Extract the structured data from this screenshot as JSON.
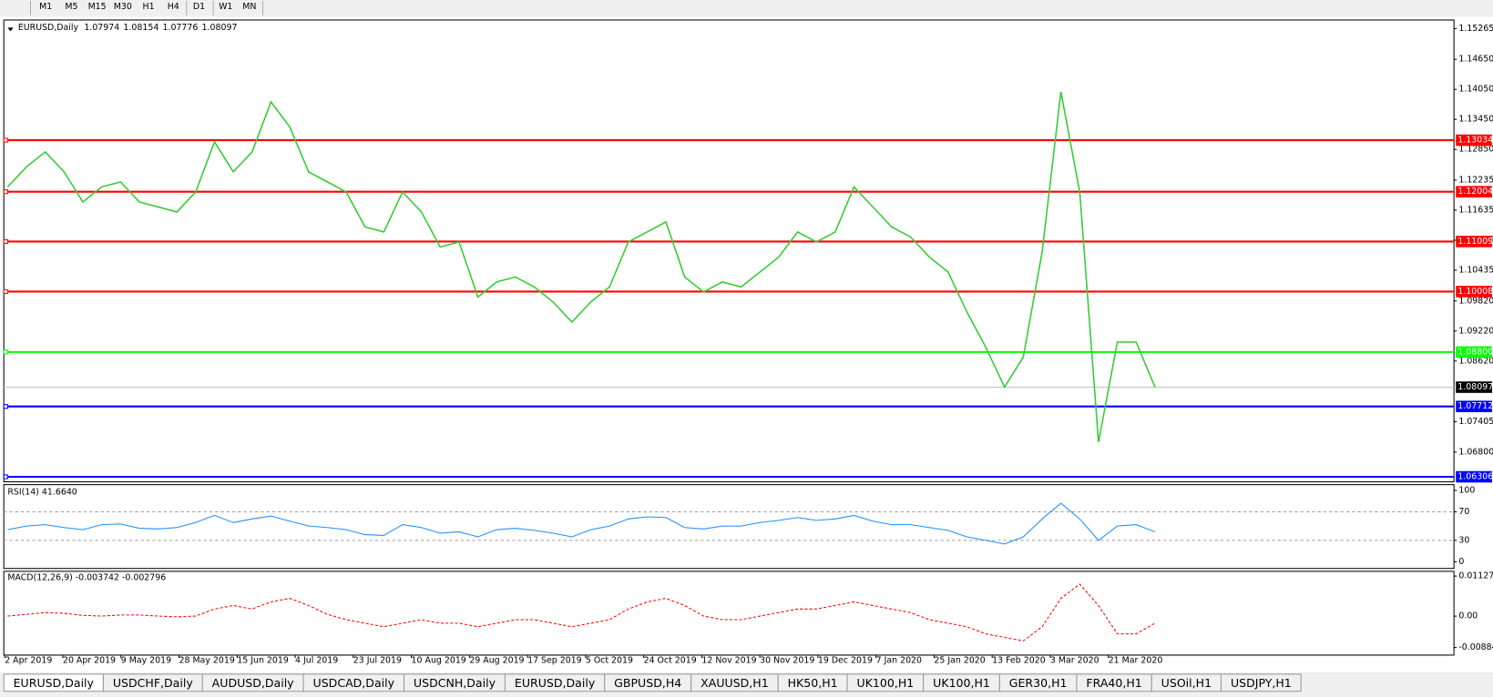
{
  "toolbar": {
    "timeframes": [
      "M1",
      "M5",
      "M15",
      "M30",
      "H1",
      "H4",
      "D1",
      "W1",
      "MN"
    ]
  },
  "chart_data": [
    {
      "type": "line",
      "title": "EURUSD,Daily",
      "ohlc": [
        1.07974,
        1.08154,
        1.07776,
        1.08097
      ],
      "color": "#33cc33",
      "values": [
        1.121,
        1.125,
        1.128,
        1.124,
        1.118,
        1.121,
        1.122,
        1.118,
        1.117,
        1.116,
        1.12,
        1.13,
        1.124,
        1.128,
        1.138,
        1.133,
        1.124,
        1.122,
        1.12,
        1.113,
        1.112,
        1.12,
        1.116,
        1.109,
        1.11,
        1.099,
        1.102,
        1.103,
        1.101,
        1.098,
        1.094,
        1.098,
        1.101,
        1.11,
        1.112,
        1.114,
        1.103,
        1.1,
        1.102,
        1.101,
        1.104,
        1.107,
        1.112,
        1.11,
        1.112,
        1.121,
        1.117,
        1.113,
        1.111,
        1.107,
        1.104,
        1.096,
        1.089,
        1.081,
        1.087,
        1.108,
        1.14,
        1.12,
        1.07,
        1.09,
        1.09,
        1.081
      ],
      "ylim": [
        1.06206,
        1.15265
      ],
      "yticks": [
        1.15265,
        {
          "value": 1.1465,
          "label": "1.14650"
        },
        {
          "value": 1.1405,
          "label": "1.14050"
        },
        {
          "value": 1.1345,
          "label": "1.13450"
        },
        {
          "value": 1.1285,
          "label": "1.12850"
        },
        1.12235,
        1.11635,
        1.11035,
        1.10435,
        {
          "value": 1.0982,
          "label": "1.09820"
        },
        {
          "value": 1.0922,
          "label": "1.09220"
        },
        {
          "value": 1.0862,
          "label": "1.08620"
        },
        1.07405,
        {
          "value": 1.068,
          "label": "1.06800"
        }
      ],
      "levels": [
        1.13034,
        1.12004,
        1.11009,
        1.10008,
        {
          "value": 1.088,
          "label": "1.08800"
        },
        1.07712,
        1.06306
      ],
      "level_colors": [
        "#ff0000",
        "#ff0000",
        "#ff0000",
        "#ff0000",
        "#00ff00",
        "#0000ff",
        "#0000ff"
      ],
      "last_price": 1.08097,
      "x_labels": [
        "2 Apr 2019",
        "20 Apr 2019",
        "9 May 2019",
        "28 May 2019",
        "15 Jun 2019",
        "4 Jul 2019",
        "23 Jul 2019",
        "10 Aug 2019",
        "29 Aug 2019",
        "17 Sep 2019",
        "5 Oct 2019",
        "24 Oct 2019",
        "12 Nov 2019",
        "30 Nov 2019",
        "19 Dec 2019",
        "7 Jan 2020",
        "25 Jan 2020",
        "13 Feb 2020",
        "3 Mar 2020",
        "21 Mar 2020"
      ]
    },
    {
      "type": "line",
      "title": "RSI(14) 41.6640",
      "color": "#1e90ff",
      "values": [
        45,
        50,
        52,
        48,
        45,
        52,
        53,
        47,
        46,
        48,
        55,
        65,
        55,
        60,
        64,
        57,
        50,
        48,
        45,
        38,
        37,
        52,
        48,
        40,
        42,
        35,
        45,
        47,
        44,
        40,
        35,
        45,
        50,
        60,
        63,
        62,
        48,
        46,
        50,
        50,
        55,
        58,
        62,
        58,
        60,
        65,
        57,
        52,
        52,
        48,
        44,
        35,
        30,
        25,
        35,
        60,
        82,
        60,
        30,
        50,
        52,
        42
      ],
      "ylim": [
        0,
        100
      ],
      "yticks": [
        100,
        70,
        30,
        0
      ],
      "levels": [
        70,
        30
      ]
    },
    {
      "type": "line",
      "title": "MACD(12,26,9) -0.003742 -0.002796",
      "color": "#ff0000",
      "values": [
        0,
        0.0005,
        0.001,
        0.0008,
        0.0002,
        0,
        0.0003,
        0.0003,
        0,
        -0.0002,
        0,
        0.002,
        0.003,
        0.002,
        0.004,
        0.005,
        0.003,
        0.0005,
        -0.001,
        -0.002,
        -0.003,
        -0.002,
        -0.001,
        -0.002,
        -0.002,
        -0.003,
        -0.002,
        -0.001,
        -0.001,
        -0.002,
        -0.003,
        -0.002,
        -0.001,
        0.002,
        0.004,
        0.005,
        0.003,
        0,
        -0.001,
        -0.001,
        0,
        0.001,
        0.002,
        0.002,
        0.003,
        0.004,
        0.003,
        0.002,
        0.001,
        -0.001,
        -0.002,
        -0.003,
        -0.005,
        -0.006,
        -0.007,
        -0.003,
        0.005,
        0.009,
        0.003,
        -0.005,
        -0.005,
        -0.002
      ],
      "ylim": [
        -0.00884,
        0.011277
      ],
      "yticks": [
        0.011277,
        {
          "value": 0,
          "label": "0.00"
        },
        -0.00884
      ]
    }
  ],
  "tabs": [
    "EURUSD,Daily",
    "USDCHF,Daily",
    "AUDUSD,Daily",
    "USDCAD,Daily",
    "USDCNH,Daily",
    "EURUSD,Daily",
    "GBPUSD,H4",
    "XAUUSD,H1",
    "HK50,H1",
    "UK100,H1",
    "UK100,H1",
    "GER30,H1",
    "FRA40,H1",
    "USOil,H1",
    "USDJPY,H1"
  ]
}
